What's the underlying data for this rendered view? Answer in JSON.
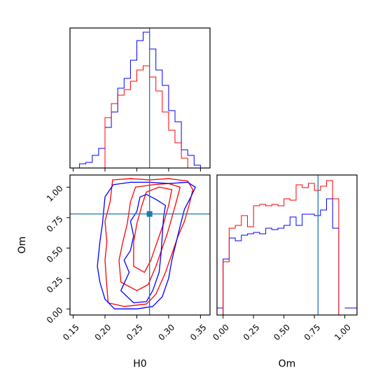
{
  "chart_data": {
    "type": "corner",
    "parameters": [
      "H0",
      "Om"
    ],
    "truth": {
      "H0": 0.27,
      "Om": 0.78
    },
    "truth_color": "#1f77b4",
    "series_colors": {
      "blue": "#0000ff",
      "red": "#ff0000"
    },
    "axes": {
      "H0": {
        "label": "H0",
        "lim": [
          0.145,
          0.365
        ],
        "ticks": [
          "0.15",
          "0.20",
          "0.25",
          "0.30",
          "0.35"
        ]
      },
      "Om": {
        "label": "Om",
        "lim": [
          -0.05,
          1.1
        ],
        "ticks": [
          "0.00",
          "0.25",
          "0.50",
          "0.75",
          "1.00"
        ]
      }
    },
    "hist_H0": {
      "bin_edges": [
        0.16,
        0.17,
        0.18,
        0.19,
        0.2,
        0.21,
        0.22,
        0.23,
        0.24,
        0.25,
        0.26,
        0.27,
        0.28,
        0.29,
        0.3,
        0.31,
        0.32,
        0.33,
        0.34,
        0.35
      ],
      "blue": [
        0.03,
        0.04,
        0.09,
        0.14,
        0.29,
        0.4,
        0.57,
        0.64,
        0.77,
        0.91,
        0.97,
        0.85,
        0.7,
        0.59,
        0.41,
        0.33,
        0.13,
        0.09,
        0.02
      ],
      "red": [
        0.0,
        0.0,
        0.0,
        0.0,
        0.36,
        0.46,
        0.52,
        0.56,
        0.62,
        0.7,
        0.73,
        0.65,
        0.55,
        0.4,
        0.27,
        0.18,
        0.07,
        0.0,
        0.0
      ]
    },
    "hist_Om": {
      "bin_edges": [
        0.0,
        0.05,
        0.1,
        0.15,
        0.2,
        0.25,
        0.3,
        0.35,
        0.4,
        0.45,
        0.5,
        0.55,
        0.6,
        0.65,
        0.7,
        0.75,
        0.8,
        0.85,
        0.9,
        0.95,
        1.0
      ],
      "blue": [
        0.4,
        0.55,
        0.53,
        0.57,
        0.58,
        0.59,
        0.58,
        0.62,
        0.61,
        0.62,
        0.64,
        0.7,
        0.64,
        0.72,
        0.72,
        0.71,
        0.75,
        0.83,
        0.62,
        0.0
      ],
      "red": [
        0.38,
        0.62,
        0.64,
        0.71,
        0.63,
        0.78,
        0.79,
        0.78,
        0.79,
        0.78,
        0.83,
        0.82,
        0.93,
        0.91,
        0.94,
        0.89,
        0.92,
        0.96,
        0.83,
        0.0
      ]
    },
    "contours_blue": [
      [
        [
          0.215,
          0.0
        ],
        [
          0.25,
          0.0
        ],
        [
          0.275,
          0.02
        ],
        [
          0.29,
          0.1
        ],
        [
          0.3,
          0.25
        ],
        [
          0.305,
          0.4
        ],
        [
          0.312,
          0.55
        ],
        [
          0.318,
          0.68
        ],
        [
          0.325,
          0.82
        ],
        [
          0.335,
          0.92
        ],
        [
          0.342,
          1.0
        ],
        [
          0.33,
          1.04
        ],
        [
          0.3,
          1.03
        ],
        [
          0.27,
          1.04
        ],
        [
          0.24,
          1.04
        ],
        [
          0.213,
          1.02
        ],
        [
          0.2,
          0.92
        ],
        [
          0.196,
          0.7
        ],
        [
          0.192,
          0.55
        ],
        [
          0.19,
          0.45
        ],
        [
          0.188,
          0.35
        ],
        [
          0.192,
          0.22
        ],
        [
          0.2,
          0.08
        ],
        [
          0.215,
          0.0
        ]
      ],
      [
        [
          0.225,
          0.15
        ],
        [
          0.245,
          0.05
        ],
        [
          0.265,
          0.06
        ],
        [
          0.275,
          0.15
        ],
        [
          0.285,
          0.3
        ],
        [
          0.288,
          0.45
        ],
        [
          0.29,
          0.6
        ],
        [
          0.292,
          0.75
        ],
        [
          0.295,
          0.85
        ],
        [
          0.28,
          0.9
        ],
        [
          0.265,
          0.94
        ],
        [
          0.255,
          0.92
        ],
        [
          0.25,
          0.8
        ],
        [
          0.24,
          0.72
        ],
        [
          0.245,
          0.6
        ],
        [
          0.24,
          0.48
        ],
        [
          0.23,
          0.4
        ],
        [
          0.238,
          0.3
        ],
        [
          0.225,
          0.15
        ]
      ]
    ],
    "contours_red": [
      [
        [
          0.205,
          0.05
        ],
        [
          0.23,
          0.02
        ],
        [
          0.265,
          0.04
        ],
        [
          0.28,
          0.12
        ],
        [
          0.295,
          0.3
        ],
        [
          0.305,
          0.45
        ],
        [
          0.315,
          0.6
        ],
        [
          0.325,
          0.72
        ],
        [
          0.332,
          0.85
        ],
        [
          0.338,
          0.98
        ],
        [
          0.33,
          1.05
        ],
        [
          0.3,
          1.07
        ],
        [
          0.27,
          1.06
        ],
        [
          0.24,
          1.07
        ],
        [
          0.212,
          1.06
        ],
        [
          0.208,
          0.88
        ],
        [
          0.2,
          0.72
        ],
        [
          0.203,
          0.55
        ],
        [
          0.2,
          0.4
        ],
        [
          0.202,
          0.25
        ],
        [
          0.205,
          0.05
        ]
      ],
      [
        [
          0.225,
          0.22
        ],
        [
          0.25,
          0.15
        ],
        [
          0.268,
          0.2
        ],
        [
          0.28,
          0.35
        ],
        [
          0.29,
          0.5
        ],
        [
          0.298,
          0.62
        ],
        [
          0.305,
          0.75
        ],
        [
          0.312,
          0.88
        ],
        [
          0.318,
          1.0
        ],
        [
          0.3,
          1.03
        ],
        [
          0.275,
          1.02
        ],
        [
          0.248,
          1.0
        ],
        [
          0.24,
          0.88
        ],
        [
          0.235,
          0.7
        ],
        [
          0.228,
          0.55
        ],
        [
          0.222,
          0.4
        ],
        [
          0.225,
          0.22
        ]
      ],
      [
        [
          0.245,
          0.35
        ],
        [
          0.262,
          0.3
        ],
        [
          0.272,
          0.4
        ],
        [
          0.282,
          0.55
        ],
        [
          0.292,
          0.7
        ],
        [
          0.3,
          0.85
        ],
        [
          0.305,
          0.98
        ],
        [
          0.285,
          1.0
        ],
        [
          0.265,
          0.96
        ],
        [
          0.258,
          0.85
        ],
        [
          0.25,
          0.7
        ],
        [
          0.245,
          0.55
        ],
        [
          0.245,
          0.35
        ]
      ]
    ]
  }
}
